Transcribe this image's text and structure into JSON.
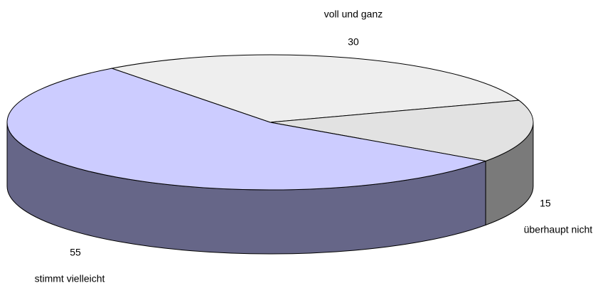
{
  "chart_data": {
    "type": "pie3d",
    "categories": [
      "voll und ganz",
      "überhaupt nicht",
      "stimmt vielleicht"
    ],
    "values": [
      30,
      15,
      55
    ],
    "colors": [
      "#eeeeee",
      "#e2e2e2",
      "#ccccff"
    ],
    "side_colors": [
      "#8a8a8a",
      "#7a7a7a",
      "#666688"
    ]
  }
}
